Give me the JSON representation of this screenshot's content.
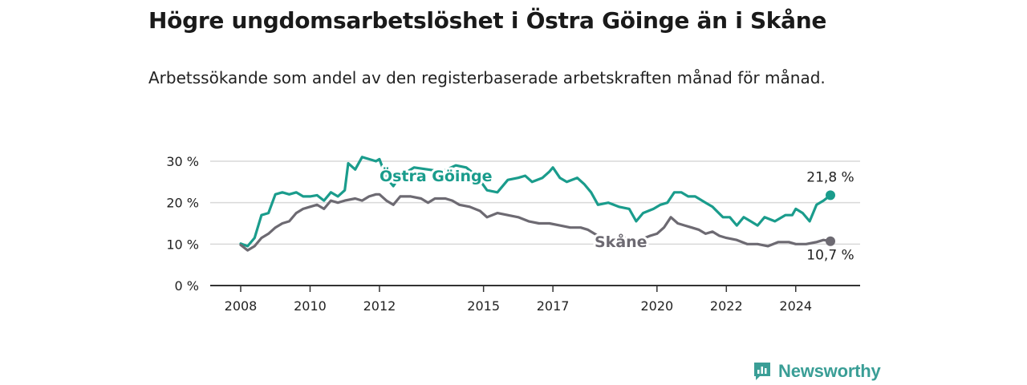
{
  "page": {
    "title": "Högre ungdomsarbetslöshet i Östra Göinge än i Skåne",
    "subtitle": "Arbetssökande som andel av den registerbaserade arbetskraften månad för månad."
  },
  "brand": {
    "name": "Newsworthy",
    "icon": "newsworthy-logo-icon",
    "color": "#3a9e96"
  },
  "chart_data": {
    "type": "line",
    "yticks": [
      "0 %",
      "10 %",
      "20 %",
      "30 %"
    ],
    "ylim": [
      0,
      30
    ],
    "xticks": [
      {
        "value": 2008,
        "label": "2008"
      },
      {
        "value": 2010,
        "label": "2010"
      },
      {
        "value": 2012,
        "label": "2012"
      },
      {
        "value": 2015,
        "label": "2015"
      },
      {
        "value": 2017,
        "label": "2017"
      },
      {
        "value": 2020,
        "label": "2020"
      },
      {
        "value": 2022,
        "label": "2022"
      },
      {
        "value": 2024,
        "label": "2024"
      }
    ],
    "xlim": [
      2008,
      2025
    ],
    "grid": true,
    "series": [
      {
        "name": "Östra Göinge",
        "color": "#1a9c8c",
        "label_halo": "#ffffff",
        "end_label": "21,8 %",
        "points": [
          [
            2008.0,
            10.1
          ],
          [
            2008.2,
            9.5
          ],
          [
            2008.4,
            11.5
          ],
          [
            2008.6,
            17.0
          ],
          [
            2008.8,
            17.5
          ],
          [
            2009.0,
            22.0
          ],
          [
            2009.2,
            22.5
          ],
          [
            2009.4,
            22.0
          ],
          [
            2009.6,
            22.5
          ],
          [
            2009.8,
            21.5
          ],
          [
            2010.0,
            21.5
          ],
          [
            2010.2,
            21.8
          ],
          [
            2010.4,
            20.5
          ],
          [
            2010.6,
            22.5
          ],
          [
            2010.8,
            21.5
          ],
          [
            2011.0,
            23.0
          ],
          [
            2011.1,
            29.5
          ],
          [
            2011.3,
            28.0
          ],
          [
            2011.5,
            31.0
          ],
          [
            2011.7,
            30.5
          ],
          [
            2011.9,
            30.0
          ],
          [
            2012.0,
            30.5
          ],
          [
            2012.2,
            26.0
          ],
          [
            2012.4,
            24.0
          ],
          [
            2012.6,
            26.5
          ],
          [
            2013.0,
            28.5
          ],
          [
            2013.4,
            28.0
          ],
          [
            2013.8,
            27.5
          ],
          [
            2014.2,
            29.0
          ],
          [
            2014.5,
            28.5
          ],
          [
            2014.8,
            26.5
          ],
          [
            2015.1,
            23.0
          ],
          [
            2015.4,
            22.5
          ],
          [
            2015.7,
            25.5
          ],
          [
            2016.0,
            26.0
          ],
          [
            2016.2,
            26.5
          ],
          [
            2016.4,
            25.0
          ],
          [
            2016.7,
            26.0
          ],
          [
            2016.9,
            27.5
          ],
          [
            2017.0,
            28.5
          ],
          [
            2017.2,
            26.0
          ],
          [
            2017.4,
            25.0
          ],
          [
            2017.7,
            26.0
          ],
          [
            2017.9,
            24.5
          ],
          [
            2018.1,
            22.5
          ],
          [
            2018.3,
            19.5
          ],
          [
            2018.6,
            20.0
          ],
          [
            2018.9,
            19.0
          ],
          [
            2019.2,
            18.5
          ],
          [
            2019.4,
            15.5
          ],
          [
            2019.6,
            17.5
          ],
          [
            2019.9,
            18.5
          ],
          [
            2020.1,
            19.5
          ],
          [
            2020.3,
            20.0
          ],
          [
            2020.5,
            22.5
          ],
          [
            2020.7,
            22.5
          ],
          [
            2020.9,
            21.5
          ],
          [
            2021.1,
            21.5
          ],
          [
            2021.4,
            20.0
          ],
          [
            2021.6,
            19.0
          ],
          [
            2021.9,
            16.5
          ],
          [
            2022.1,
            16.5
          ],
          [
            2022.3,
            14.5
          ],
          [
            2022.5,
            16.5
          ],
          [
            2022.7,
            15.5
          ],
          [
            2022.9,
            14.5
          ],
          [
            2023.1,
            16.5
          ],
          [
            2023.4,
            15.5
          ],
          [
            2023.7,
            17.0
          ],
          [
            2023.9,
            17.0
          ],
          [
            2024.0,
            18.5
          ],
          [
            2024.2,
            17.5
          ],
          [
            2024.4,
            15.5
          ],
          [
            2024.6,
            19.5
          ],
          [
            2024.8,
            20.5
          ],
          [
            2025.0,
            21.8
          ]
        ]
      },
      {
        "name": "Skåne",
        "color": "#6d6a72",
        "label_halo": "#ffffff",
        "end_label": "10,7 %",
        "points": [
          [
            2008.0,
            9.8
          ],
          [
            2008.2,
            8.5
          ],
          [
            2008.4,
            9.5
          ],
          [
            2008.6,
            11.5
          ],
          [
            2008.8,
            12.5
          ],
          [
            2009.0,
            14.0
          ],
          [
            2009.2,
            15.0
          ],
          [
            2009.4,
            15.5
          ],
          [
            2009.6,
            17.5
          ],
          [
            2009.8,
            18.5
          ],
          [
            2010.0,
            19.0
          ],
          [
            2010.2,
            19.5
          ],
          [
            2010.4,
            18.5
          ],
          [
            2010.6,
            20.5
          ],
          [
            2010.8,
            20.0
          ],
          [
            2011.0,
            20.5
          ],
          [
            2011.3,
            21.0
          ],
          [
            2011.5,
            20.5
          ],
          [
            2011.7,
            21.5
          ],
          [
            2011.9,
            22.0
          ],
          [
            2012.0,
            22.0
          ],
          [
            2012.2,
            20.5
          ],
          [
            2012.4,
            19.5
          ],
          [
            2012.6,
            21.5
          ],
          [
            2012.9,
            21.5
          ],
          [
            2013.2,
            21.0
          ],
          [
            2013.4,
            20.0
          ],
          [
            2013.6,
            21.0
          ],
          [
            2013.9,
            21.0
          ],
          [
            2014.1,
            20.5
          ],
          [
            2014.3,
            19.5
          ],
          [
            2014.6,
            19.0
          ],
          [
            2014.9,
            18.0
          ],
          [
            2015.1,
            16.5
          ],
          [
            2015.4,
            17.5
          ],
          [
            2015.7,
            17.0
          ],
          [
            2016.0,
            16.5
          ],
          [
            2016.3,
            15.5
          ],
          [
            2016.6,
            15.0
          ],
          [
            2016.9,
            15.0
          ],
          [
            2017.2,
            14.5
          ],
          [
            2017.5,
            14.0
          ],
          [
            2017.8,
            14.0
          ],
          [
            2018.0,
            13.5
          ],
          [
            2018.3,
            12.0
          ],
          [
            2018.6,
            11.5
          ],
          [
            2018.9,
            11.5
          ],
          [
            2019.2,
            11.5
          ],
          [
            2019.5,
            11.0
          ],
          [
            2019.8,
            12.0
          ],
          [
            2020.0,
            12.5
          ],
          [
            2020.2,
            14.0
          ],
          [
            2020.4,
            16.5
          ],
          [
            2020.6,
            15.0
          ],
          [
            2020.8,
            14.5
          ],
          [
            2021.0,
            14.0
          ],
          [
            2021.2,
            13.5
          ],
          [
            2021.4,
            12.5
          ],
          [
            2021.6,
            13.0
          ],
          [
            2021.8,
            12.0
          ],
          [
            2022.0,
            11.5
          ],
          [
            2022.3,
            11.0
          ],
          [
            2022.6,
            10.0
          ],
          [
            2022.9,
            10.0
          ],
          [
            2023.2,
            9.5
          ],
          [
            2023.5,
            10.5
          ],
          [
            2023.8,
            10.5
          ],
          [
            2024.0,
            10.0
          ],
          [
            2024.3,
            10.0
          ],
          [
            2024.6,
            10.5
          ],
          [
            2024.8,
            11.0
          ],
          [
            2025.0,
            10.7
          ]
        ]
      }
    ]
  }
}
